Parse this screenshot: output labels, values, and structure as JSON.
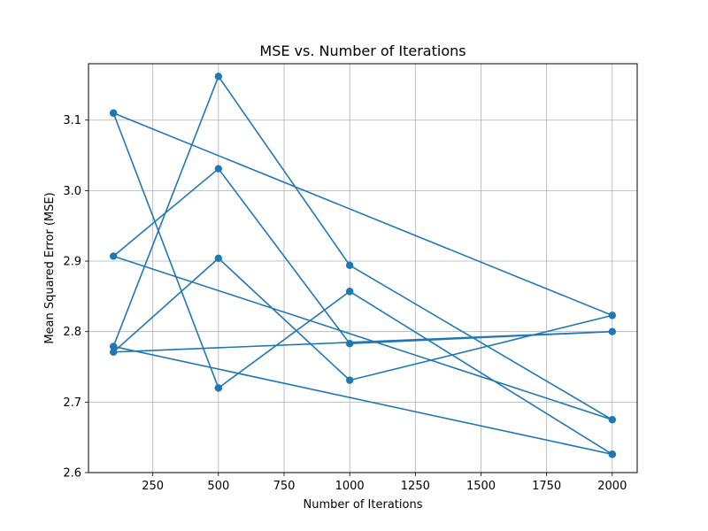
{
  "chart_data": {
    "type": "line",
    "title": "MSE vs. Number of Iterations",
    "xlabel": "Number of Iterations",
    "ylabel": "Mean Squared Error (MSE)",
    "xlim": [
      5,
      2095
    ],
    "ylim": [
      2.6,
      3.18
    ],
    "xticks": [
      250,
      500,
      750,
      1000,
      1250,
      1500,
      1750,
      2000
    ],
    "yticks": [
      2.6,
      2.7,
      2.8,
      2.9,
      3.0,
      3.1
    ],
    "grid": true,
    "series": [
      {
        "color": "#1f77b4",
        "marker": "circle",
        "x": [
          100,
          500,
          1000,
          2000,
          100,
          500,
          1000,
          2000,
          100,
          500,
          1000,
          2000,
          100,
          500,
          1000,
          2000,
          100,
          500,
          1000,
          2000
        ],
        "y": [
          3.11,
          2.72,
          2.857,
          2.626,
          2.779,
          3.162,
          2.894,
          2.675,
          2.907,
          3.031,
          2.783,
          2.8,
          2.771,
          2.904,
          2.731,
          2.823,
          3.11,
          2.72,
          2.857,
          2.626
        ]
      }
    ]
  }
}
